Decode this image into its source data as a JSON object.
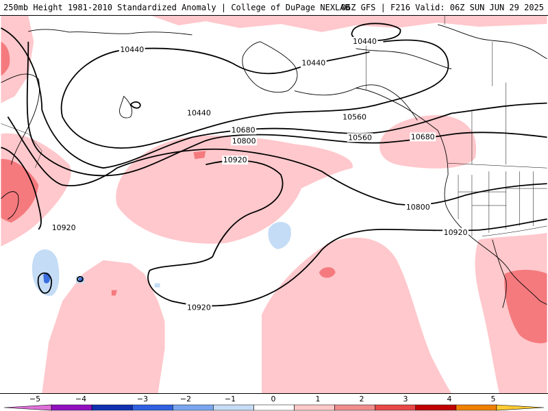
{
  "header": {
    "title": "250mb Height 1981-2010 Standardized Anomaly | College of DuPage NEXLAB",
    "valid": "06Z GFS | F216 Valid: 06Z SUN JUN 29 2025"
  },
  "contours": {
    "labels": [
      "10440",
      "10440",
      "10440",
      "10440",
      "10560",
      "10560",
      "10680",
      "10680",
      "10800",
      "10800",
      "10920",
      "10920",
      "10920",
      "10920"
    ]
  },
  "colorbar": {
    "ticks": [
      "−5",
      "−4",
      "−3",
      "−2",
      "−1",
      "0",
      "1",
      "2",
      "3",
      "4",
      "5"
    ],
    "colors": [
      "#e070d8",
      "#9010c0",
      "#1030b0",
      "#3060e0",
      "#7aa6f0",
      "#c6dcf6",
      "#ffffff",
      "#ffc8c8",
      "#f08c8c",
      "#e84848",
      "#c00000",
      "#f08000",
      "#ffcc33"
    ]
  },
  "anomaly_colors": {
    "weak_positive": "#ffc8cc",
    "strong_positive": "#f47a7e",
    "weak_negative": "#c4dcf6",
    "strong_negative": "#3a6ee0"
  }
}
